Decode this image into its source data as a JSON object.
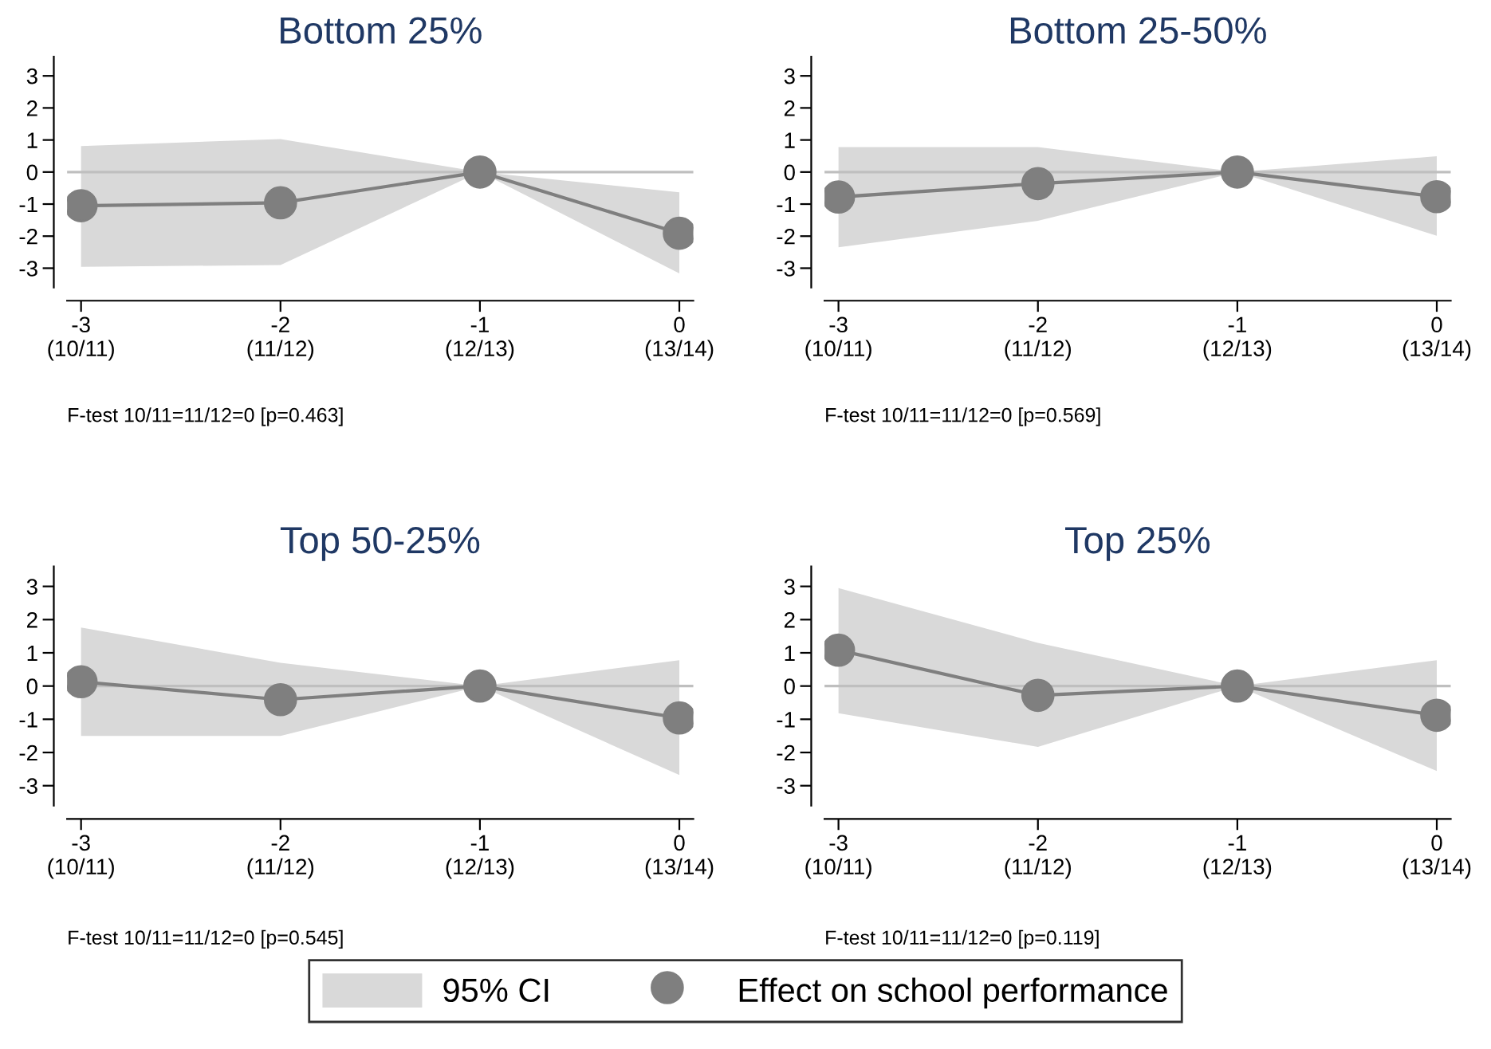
{
  "chart_data": [
    {
      "type": "line",
      "title": "Bottom 25%",
      "categories": [
        "-3\n(10/11)",
        "-2\n(11/12)",
        "-1\n(12/13)",
        "0\n(13/14)"
      ],
      "ylim": [
        -3.6,
        3.6
      ],
      "yticks": [
        3,
        2,
        1,
        0,
        -1,
        -2,
        -3
      ],
      "series": [
        {
          "color": "#7f7f7f",
          "values": [
            -1.05,
            -0.96,
            0,
            -1.91
          ],
          "lower": [
            -2.96,
            -2.9,
            0,
            -3.16
          ],
          "upper": [
            0.81,
            1.03,
            0,
            -0.63
          ]
        }
      ],
      "ref_lines": [
        {
          "axis": "y",
          "value": 0,
          "color": "#bfbfbf"
        }
      ],
      "marker": "circle",
      "legend": false,
      "annotations": [
        "F-test 10/11=11/12=0 [p=0.463]"
      ]
    },
    {
      "type": "line",
      "title": "Bottom 25-50%",
      "categories": [
        "-3\n(10/11)",
        "-2\n(11/12)",
        "-1\n(12/13)",
        "0\n(13/14)"
      ],
      "ylim": [
        -3.6,
        3.6
      ],
      "yticks": [
        3,
        2,
        1,
        0,
        -1,
        -2,
        -3
      ],
      "series": [
        {
          "color": "#7f7f7f",
          "values": [
            -0.78,
            -0.36,
            0,
            -0.77
          ],
          "lower": [
            -2.35,
            -1.52,
            0,
            -1.99
          ],
          "upper": [
            0.78,
            0.78,
            0,
            0.49
          ]
        }
      ],
      "ref_lines": [
        {
          "axis": "y",
          "value": 0,
          "color": "#bfbfbf"
        }
      ],
      "marker": "circle",
      "legend": false,
      "annotations": [
        "F-test 10/11=11/12=0 [p=0.569]"
      ]
    },
    {
      "type": "line",
      "title": "Top 50-25%",
      "categories": [
        "-3\n(10/11)",
        "-2\n(11/12)",
        "-1\n(12/13)",
        "0\n(13/14)"
      ],
      "ylim": [
        -3.6,
        3.6
      ],
      "yticks": [
        3,
        2,
        1,
        0,
        -1,
        -2,
        -3
      ],
      "series": [
        {
          "color": "#7f7f7f",
          "values": [
            0.13,
            -0.41,
            0,
            -0.96
          ],
          "lower": [
            -1.5,
            -1.5,
            0,
            -2.68
          ],
          "upper": [
            1.76,
            0.7,
            0,
            0.78
          ]
        }
      ],
      "ref_lines": [
        {
          "axis": "y",
          "value": 0,
          "color": "#bfbfbf"
        }
      ],
      "marker": "circle",
      "legend": false,
      "annotations": [
        "F-test 10/11=11/12=0 [p=0.545]"
      ]
    },
    {
      "type": "line",
      "title": "Top 25%",
      "categories": [
        "-3\n(10/11)",
        "-2\n(11/12)",
        "-1\n(12/13)",
        "0\n(13/14)"
      ],
      "ylim": [
        -3.6,
        3.6
      ],
      "yticks": [
        3,
        2,
        1,
        0,
        -1,
        -2,
        -3
      ],
      "series": [
        {
          "name": "Effect on school performance",
          "color": "#7f7f7f",
          "values": [
            1.08,
            -0.28,
            0,
            -0.88
          ],
          "lower": [
            -0.82,
            -1.83,
            0,
            -2.56
          ],
          "upper": [
            2.95,
            1.3,
            0,
            0.78
          ]
        }
      ],
      "ref_lines": [
        {
          "axis": "y",
          "value": 0,
          "color": "#bfbfbf"
        }
      ],
      "marker": "circle",
      "legend": "bottom",
      "annotations": [
        "F-test 10/11=11/12=0 [p=0.119]",
        "95% CI"
      ]
    }
  ]
}
